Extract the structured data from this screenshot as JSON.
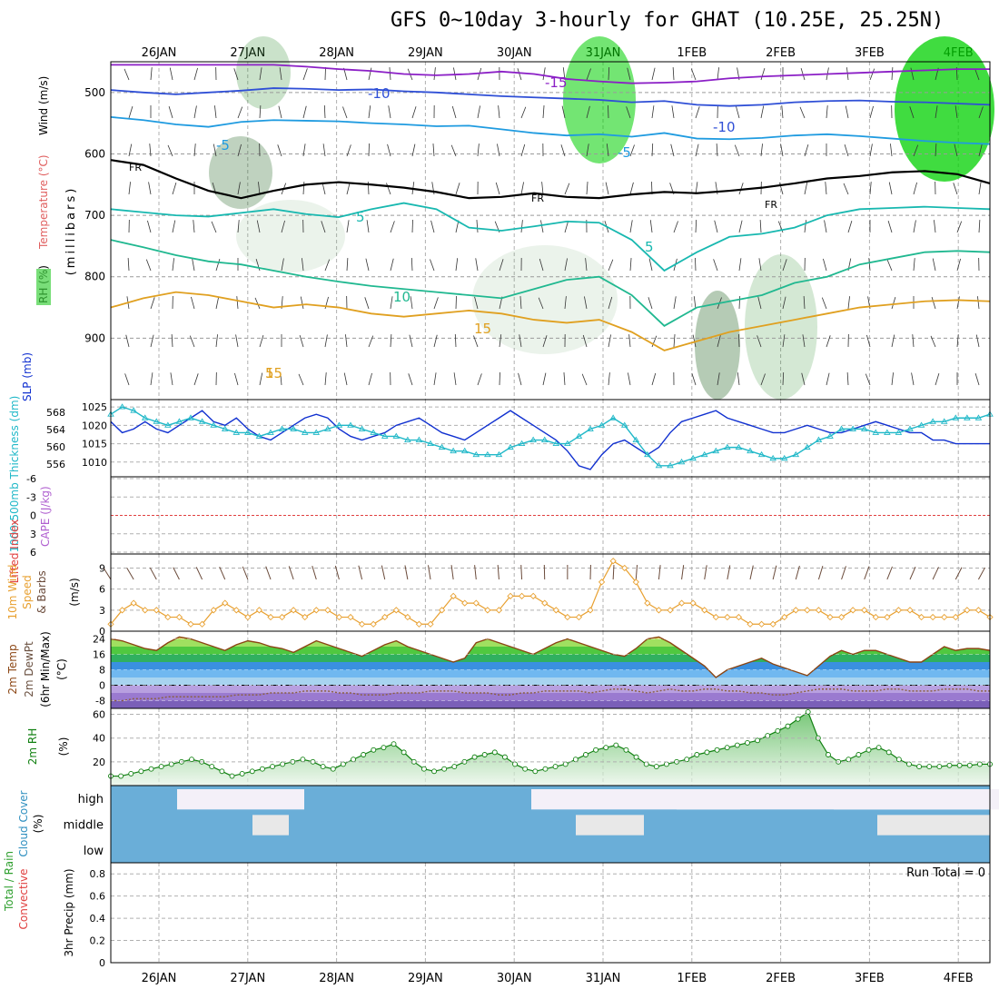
{
  "page": {
    "title": "GFS 0~10day 3-hourly for GHAT (10.25E, 25.25N)"
  },
  "dates": [
    "26JAN",
    "27JAN",
    "28JAN",
    "29JAN",
    "30JAN",
    "31JAN",
    "1FEB",
    "2FEB",
    "3FEB",
    "4FEB"
  ],
  "chart_data": [
    {
      "id": "upper_air",
      "type": "heatmap",
      "ylabel_parts": [
        "RH (%)",
        "Temperature (°C)",
        "Wind (m/s)"
      ],
      "y_axis_title": "(millibars)",
      "yticks": [
        500,
        600,
        700,
        800,
        900
      ],
      "ylim": [
        1000,
        450
      ],
      "isotherm_labels": [
        "-15",
        "-10",
        "-10",
        "-5",
        "-5",
        "FR",
        "FR",
        "FR",
        "5",
        "5",
        "10",
        "15",
        "15",
        "5"
      ],
      "isotherms": [
        {
          "label": "-15",
          "color": "#8b1fc6",
          "pressure": [
            455,
            455,
            455,
            455,
            455,
            455,
            458,
            462,
            465,
            470,
            472,
            470,
            466,
            470,
            478,
            482,
            485,
            484,
            482,
            477,
            474,
            472,
            470,
            468,
            466,
            464,
            462,
            462
          ]
        },
        {
          "label": "-10",
          "color": "#2f4fd6",
          "pressure": [
            496,
            500,
            503,
            500,
            497,
            493,
            494,
            496,
            495,
            498,
            500,
            503,
            506,
            508,
            510,
            512,
            516,
            514,
            520,
            522,
            520,
            516,
            514,
            513,
            515,
            516,
            518,
            520
          ]
        },
        {
          "label": "-5",
          "color": "#1f9be0",
          "pressure": [
            540,
            545,
            552,
            556,
            548,
            545,
            546,
            547,
            550,
            552,
            555,
            554,
            560,
            566,
            570,
            568,
            572,
            566,
            575,
            576,
            574,
            570,
            568,
            571,
            575,
            579,
            582,
            584
          ]
        },
        {
          "label": "FR",
          "color": "#000000",
          "pressure": [
            610,
            618,
            640,
            660,
            672,
            660,
            650,
            646,
            650,
            655,
            662,
            672,
            670,
            664,
            670,
            672,
            666,
            662,
            664,
            660,
            655,
            648,
            640,
            636,
            630,
            628,
            633,
            648
          ]
        },
        {
          "label": "5",
          "color": "#18b8b0",
          "pressure": [
            690,
            695,
            700,
            702,
            696,
            690,
            698,
            703,
            690,
            680,
            690,
            720,
            725,
            718,
            710,
            712,
            740,
            790,
            760,
            735,
            730,
            720,
            700,
            690,
            688,
            686,
            688,
            690
          ]
        },
        {
          "label": "10",
          "color": "#20b890",
          "pressure": [
            740,
            752,
            765,
            775,
            780,
            790,
            800,
            808,
            815,
            820,
            825,
            830,
            835,
            820,
            805,
            800,
            830,
            880,
            850,
            840,
            830,
            810,
            800,
            780,
            770,
            760,
            758,
            760
          ]
        },
        {
          "label": "15",
          "color": "#e0a020",
          "pressure": [
            850,
            835,
            825,
            830,
            840,
            850,
            845,
            850,
            860,
            865,
            860,
            855,
            860,
            870,
            875,
            870,
            890,
            920,
            905,
            890,
            880,
            870,
            860,
            850,
            845,
            840,
            838,
            840
          ]
        }
      ]
    },
    {
      "id": "slp_thickness",
      "type": "line",
      "ylabel_parts": [
        "1000-500mb Thickness (dm)",
        "SLP (mb)"
      ],
      "yticks_left": [
        556,
        560,
        564,
        568
      ],
      "yticks_right": [
        1010,
        1015,
        1020,
        1025
      ],
      "ylim_left": [
        553,
        571
      ],
      "ylim_right": [
        1006,
        1027
      ],
      "series": [
        {
          "color": "#1030d0",
          "values": [
            1021,
            1018,
            1019,
            1021,
            1019,
            1018,
            1020,
            1022,
            1024,
            1021,
            1020,
            1022,
            1019,
            1017,
            1016,
            1018,
            1020,
            1022,
            1023,
            1022,
            1019,
            1017,
            1016,
            1017,
            1018,
            1020,
            1021,
            1022,
            1020,
            1018,
            1017,
            1016,
            1018,
            1020,
            1022,
            1024,
            1022,
            1020,
            1018,
            1016,
            1013,
            1009,
            1008,
            1012,
            1015,
            1016,
            1014,
            1012,
            1014,
            1018,
            1021,
            1022,
            1023,
            1024,
            1022,
            1021,
            1020,
            1019,
            1018,
            1018,
            1019,
            1020,
            1019,
            1018,
            1018,
            1019,
            1020,
            1021,
            1020,
            1019,
            1018,
            1018,
            1016,
            1016,
            1015,
            1015,
            1015,
            1015
          ]
        },
        {
          "color": "#20b8c8",
          "markers": "triangle",
          "values": [
            1023,
            1025,
            1024,
            1022,
            1021,
            1020,
            1021,
            1022,
            1021,
            1020,
            1019,
            1018,
            1018,
            1017,
            1018,
            1019,
            1019,
            1018,
            1018,
            1019,
            1020,
            1020,
            1019,
            1018,
            1017,
            1017,
            1016,
            1016,
            1015,
            1014,
            1013,
            1013,
            1012,
            1012,
            1012,
            1014,
            1015,
            1016,
            1016,
            1015,
            1015,
            1017,
            1019,
            1020,
            1022,
            1020,
            1016,
            1012,
            1009,
            1009,
            1010,
            1011,
            1012,
            1013,
            1014,
            1014,
            1013,
            1012,
            1011,
            1011,
            1012,
            1014,
            1016,
            1017,
            1019,
            1019,
            1019,
            1018,
            1018,
            1018,
            1019,
            1020,
            1021,
            1021,
            1022,
            1022,
            1022,
            1023
          ]
        }
      ]
    },
    {
      "id": "stability",
      "type": "line",
      "ylabel_parts": [
        "Lifted Index",
        "CAPE (J/kg)"
      ],
      "yticks": [
        "-6",
        "-3",
        "0",
        "3",
        "6"
      ],
      "ylim": [
        6,
        -6
      ],
      "series": [
        {
          "color": "#e04040",
          "values": [
            0
          ]
        }
      ]
    },
    {
      "id": "wind10m",
      "type": "line",
      "ylabel_parts": [
        "10m Wind",
        "Speed",
        "& Barbs",
        "(m/s)"
      ],
      "yticks": [
        0,
        3,
        6,
        9
      ],
      "ylim": [
        0,
        11
      ],
      "series": [
        {
          "color": "#e8a030",
          "markers": "diamond",
          "values": [
            1,
            3,
            4,
            3,
            3,
            2,
            2,
            1,
            1,
            3,
            4,
            3,
            2,
            3,
            2,
            2,
            3,
            2,
            3,
            3,
            2,
            2,
            1,
            1,
            2,
            3,
            2,
            1,
            1,
            3,
            5,
            4,
            4,
            3,
            3,
            5,
            5,
            5,
            4,
            3,
            2,
            2,
            3,
            7,
            10,
            9,
            7,
            4,
            3,
            3,
            4,
            4,
            3,
            2,
            2,
            2,
            1,
            1,
            1,
            2,
            3,
            3,
            3,
            2,
            2,
            3,
            3,
            2,
            2,
            3,
            3,
            2,
            2,
            2,
            2,
            3,
            3,
            2
          ]
        }
      ]
    },
    {
      "id": "temp2m",
      "type": "area",
      "ylabel_parts": [
        "2m Temp",
        "2m DewPt",
        "(6hr Min/Max)",
        "(°C)"
      ],
      "yticks": [
        -8,
        0,
        8,
        16,
        24
      ],
      "ylim": [
        -12,
        28
      ],
      "series": [
        {
          "name": "",
          "color": "#8b4513",
          "values": [
            24,
            23,
            21,
            19,
            18,
            22,
            25,
            24,
            22,
            20,
            18,
            21,
            23,
            22,
            20,
            19,
            17,
            20,
            23,
            21,
            19,
            17,
            15,
            18,
            21,
            23,
            20,
            18,
            16,
            14,
            12,
            14,
            22,
            24,
            22,
            20,
            18,
            16,
            19,
            22,
            24,
            22,
            20,
            18,
            16,
            15,
            19,
            24,
            25,
            22,
            18,
            14,
            10,
            4,
            8,
            10,
            12,
            14,
            11,
            9,
            7,
            5,
            10,
            15,
            18,
            16,
            18,
            18,
            16,
            14,
            12,
            12,
            16,
            20,
            18,
            19,
            19,
            18
          ]
        },
        {
          "name": "",
          "color": "#8b6040",
          "values": [
            -8,
            -8,
            -7,
            -7,
            -7,
            -6,
            -6,
            -6,
            -6,
            -6,
            -6,
            -5,
            -5,
            -5,
            -4,
            -4,
            -4,
            -3,
            -3,
            -3,
            -4,
            -4,
            -5,
            -5,
            -5,
            -4,
            -4,
            -4,
            -3,
            -3,
            -3,
            -4,
            -4,
            -4,
            -5,
            -5,
            -4,
            -4,
            -3,
            -3,
            -3,
            -3,
            -4,
            -3,
            -2,
            -2,
            -3,
            -4,
            -3,
            -2,
            -3,
            -3,
            -2,
            -2,
            -3,
            -3,
            -4,
            -4,
            -5,
            -5,
            -4,
            -3,
            -2,
            -2,
            -2,
            -3,
            -3,
            -3,
            -2,
            -2,
            -3,
            -3,
            -3,
            -2,
            -2,
            -2,
            -3,
            -3
          ]
        }
      ]
    },
    {
      "id": "rh2m",
      "type": "area",
      "ylabel_parts": [
        "2m RH",
        "(%)"
      ],
      "yticks": [
        20,
        40,
        60
      ],
      "ylim": [
        0,
        65
      ],
      "series": [
        {
          "color": "#108010",
          "markers": "circle",
          "values": [
            8,
            8,
            10,
            12,
            14,
            16,
            18,
            20,
            22,
            20,
            16,
            12,
            8,
            10,
            12,
            14,
            16,
            18,
            20,
            22,
            20,
            16,
            14,
            18,
            22,
            26,
            30,
            32,
            35,
            28,
            20,
            14,
            12,
            14,
            16,
            20,
            24,
            26,
            28,
            24,
            18,
            14,
            12,
            14,
            16,
            18,
            22,
            26,
            30,
            32,
            34,
            30,
            24,
            18,
            16,
            18,
            20,
            22,
            26,
            28,
            30,
            32,
            34,
            36,
            38,
            42,
            46,
            50,
            56,
            62,
            40,
            26,
            20,
            22,
            26,
            30,
            32,
            28,
            22,
            18,
            16,
            16,
            16,
            17,
            17,
            17,
            18,
            18
          ]
        }
      ]
    },
    {
      "id": "cloud",
      "type": "heatmap",
      "ylabel_parts": [
        "Cloud Cover",
        "(%)"
      ],
      "rows": [
        "high",
        "middle",
        "low"
      ]
    },
    {
      "id": "precip",
      "type": "bar",
      "ylabel_parts": [
        "Total / Rain",
        "Convective",
        "3hr Precip (mm)"
      ],
      "yticks": [
        "0",
        "0.2",
        "0.4",
        "0.6",
        "0.8"
      ],
      "ylim": [
        0,
        0.9
      ],
      "values": [],
      "annotation": "Run Total = 0"
    }
  ]
}
